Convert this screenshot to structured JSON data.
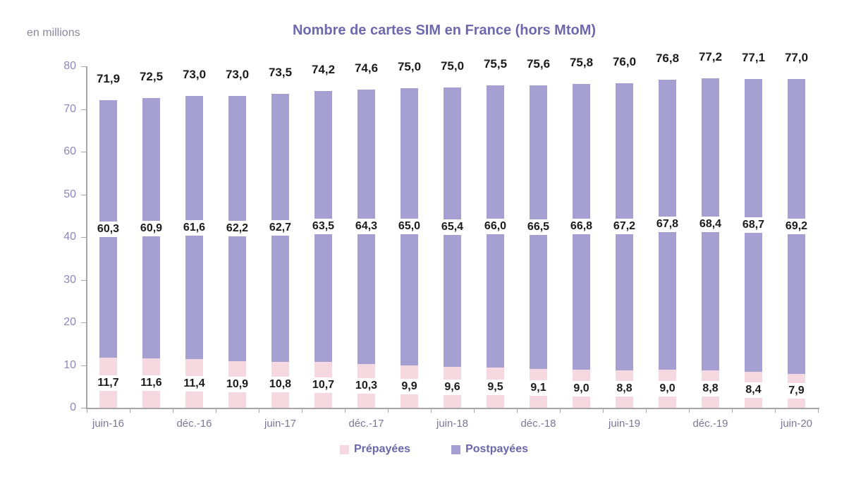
{
  "chart_data": {
    "type": "bar",
    "stacked": true,
    "title": "Nombre de cartes SIM en France (hors MtoM)",
    "units_label": "en millions",
    "num_bars": 17,
    "x_tick_labels": [
      "juin-16",
      "déc.-16",
      "juin-17",
      "déc.-17",
      "juin-18",
      "déc.-18",
      "juin-19",
      "déc.-19",
      "juin-20"
    ],
    "x_tick_label_bar_indexes": [
      0,
      2,
      4,
      6,
      8,
      10,
      12,
      14,
      16
    ],
    "series": [
      {
        "name": "Prépayées",
        "color": "#f5d8e0",
        "values": [
          11.7,
          11.6,
          11.4,
          10.9,
          10.8,
          10.7,
          10.3,
          9.9,
          9.6,
          9.5,
          9.1,
          9.0,
          8.8,
          9.0,
          8.8,
          8.4,
          7.9
        ]
      },
      {
        "name": "Postpayées",
        "color": "#a5a0d1",
        "values": [
          60.3,
          60.9,
          61.6,
          62.2,
          62.7,
          63.5,
          64.3,
          65.0,
          65.4,
          66.0,
          66.5,
          66.8,
          67.2,
          67.8,
          68.4,
          68.7,
          69.2
        ]
      }
    ],
    "totals": [
      71.9,
      72.5,
      73.0,
      73.0,
      73.5,
      74.2,
      74.6,
      75.0,
      75.0,
      75.5,
      75.6,
      75.8,
      76.0,
      76.8,
      77.2,
      77.1,
      77.0
    ],
    "ylim": [
      0,
      80
    ],
    "y_ticks": [
      0,
      10,
      20,
      30,
      40,
      50,
      60,
      70,
      80
    ],
    "grid": false,
    "legend_position": "bottom",
    "decimal_separator": ","
  },
  "colors": {
    "title": "#6e68ae",
    "legend_text": "#6b66ab",
    "y_axis_text": "#8d88b8",
    "x_axis_text": "#7d7895",
    "data_label": "#1b1b1b",
    "axis_line": "#a6a6a6",
    "background": "#ffffff"
  }
}
